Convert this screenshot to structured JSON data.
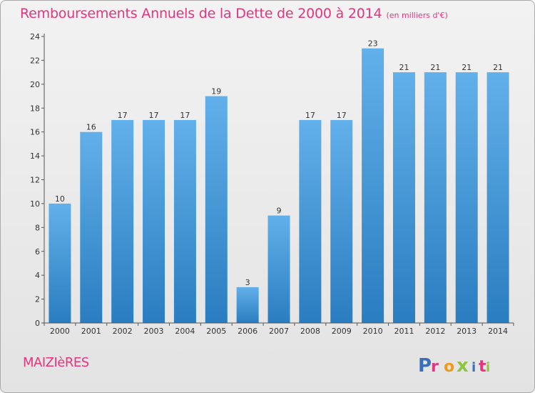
{
  "title": "Remboursements Annuels de la Dette de 2000 à 2014",
  "subtitle": "(en milliers d'€)",
  "location": "MAIZIèRES",
  "logo": {
    "text": "Proxiti",
    "colors": [
      "#3b6fb6",
      "#e4357f",
      "#f29a1b",
      "#8cc63f",
      "#3b6fb6",
      "#e4357f",
      "#8cc63f"
    ]
  },
  "colors": {
    "accent": "#e4357f",
    "bar_light": "#62b0ea",
    "bar_dark": "#2a7dc0",
    "axis": "#555555"
  },
  "chart_data": {
    "type": "bar",
    "categories": [
      "2000",
      "2001",
      "2002",
      "2003",
      "2004",
      "2005",
      "2006",
      "2007",
      "2008",
      "2009",
      "2010",
      "2011",
      "2012",
      "2013",
      "2014"
    ],
    "values": [
      10,
      16,
      17,
      17,
      17,
      19,
      3,
      9,
      17,
      17,
      23,
      21,
      21,
      21,
      21
    ],
    "ylim": [
      0,
      24
    ],
    "yticks": [
      0,
      2,
      4,
      6,
      8,
      10,
      12,
      14,
      16,
      18,
      20,
      22,
      24
    ],
    "grid": false,
    "legend": "none"
  }
}
